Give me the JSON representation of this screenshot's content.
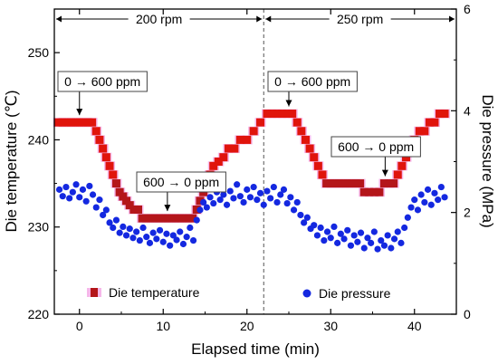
{
  "chart_data": {
    "type": "scatter",
    "xlabel": "Elapsed time (min)",
    "ylabel_left": "Die temperature (℃)",
    "ylabel_right": "Die pressure (MPa)",
    "xlim": [
      -3,
      45
    ],
    "ylim_left": [
      220,
      255
    ],
    "ylim_right": [
      0,
      6
    ],
    "x_ticks": [
      0,
      10,
      20,
      30,
      40
    ],
    "y_left_ticks": [
      220,
      230,
      240,
      250
    ],
    "y_right_ticks": [
      0,
      2,
      4,
      6
    ],
    "divider_x": 22,
    "regions": [
      {
        "label": "200 rpm",
        "x_start": -3,
        "x_end": 22
      },
      {
        "label": "250 rpm",
        "x_start": 22,
        "x_end": 45
      }
    ],
    "annotations": [
      {
        "text": "0 → 600 ppm",
        "arrow_x": 0,
        "arrow_y_temp": 242
      },
      {
        "text": "600 → 0 ppm",
        "arrow_x": 10.5,
        "arrow_y_temp": 231
      },
      {
        "text": "0 → 600 ppm",
        "arrow_x": 25,
        "arrow_y_temp": 243
      },
      {
        "text": "600 → 0 ppm",
        "arrow_x": 36.5,
        "arrow_y_temp": 235
      }
    ],
    "legend_placement": "bottom",
    "series": [
      {
        "name": "Die temperature",
        "axis": "left",
        "color": "#e0140c",
        "marker": "square",
        "points": [
          [
            -2.5,
            242
          ],
          [
            -2,
            242
          ],
          [
            -1.5,
            242
          ],
          [
            -1,
            242
          ],
          [
            -0.5,
            242
          ],
          [
            0,
            242
          ],
          [
            0.5,
            242
          ],
          [
            1,
            242
          ],
          [
            1.5,
            242
          ],
          [
            2,
            241
          ],
          [
            2.4,
            240
          ],
          [
            2.8,
            239
          ],
          [
            3.2,
            238
          ],
          [
            3.6,
            237
          ],
          [
            4,
            236
          ],
          [
            4.4,
            235
          ],
          [
            4.8,
            234
          ],
          [
            5.2,
            233.5
          ],
          [
            5.6,
            233
          ],
          [
            6,
            232.5
          ],
          [
            6.5,
            232
          ],
          [
            7,
            232
          ],
          [
            7.5,
            231
          ],
          [
            8,
            231
          ],
          [
            8.5,
            231
          ],
          [
            9,
            231
          ],
          [
            9.5,
            231
          ],
          [
            10,
            231
          ],
          [
            10.5,
            231
          ],
          [
            11,
            231
          ],
          [
            11.5,
            231
          ],
          [
            12,
            231
          ],
          [
            12.5,
            231
          ],
          [
            13,
            231
          ],
          [
            13.5,
            231
          ],
          [
            14,
            232
          ],
          [
            14.4,
            233
          ],
          [
            14.8,
            234
          ],
          [
            15.2,
            235
          ],
          [
            15.6,
            236
          ],
          [
            16,
            237
          ],
          [
            16.6,
            237.5
          ],
          [
            17.2,
            238
          ],
          [
            17.8,
            239
          ],
          [
            18.5,
            239
          ],
          [
            19.2,
            240
          ],
          [
            20,
            240
          ],
          [
            20.8,
            241
          ],
          [
            21.6,
            242
          ],
          [
            22.4,
            243
          ],
          [
            23,
            243
          ],
          [
            23.6,
            243
          ],
          [
            24.2,
            243
          ],
          [
            24.8,
            243
          ],
          [
            25.4,
            243
          ],
          [
            26,
            242
          ],
          [
            26.5,
            241
          ],
          [
            27,
            240
          ],
          [
            27.5,
            239
          ],
          [
            28,
            238
          ],
          [
            28.5,
            237
          ],
          [
            29,
            236
          ],
          [
            29.5,
            235
          ],
          [
            30,
            235
          ],
          [
            30.5,
            235
          ],
          [
            31,
            235
          ],
          [
            31.5,
            235
          ],
          [
            32,
            235
          ],
          [
            32.5,
            235
          ],
          [
            33,
            235
          ],
          [
            33.5,
            235
          ],
          [
            34,
            234
          ],
          [
            34.6,
            234
          ],
          [
            35.2,
            234
          ],
          [
            35.8,
            234
          ],
          [
            36.4,
            235
          ],
          [
            37,
            235
          ],
          [
            37.5,
            235
          ],
          [
            38,
            236
          ],
          [
            38.5,
            237
          ],
          [
            39,
            238
          ],
          [
            39.5,
            239
          ],
          [
            40,
            240
          ],
          [
            40.6,
            241
          ],
          [
            41.2,
            241
          ],
          [
            41.8,
            242
          ],
          [
            42.4,
            242
          ],
          [
            43,
            243
          ],
          [
            43.6,
            243
          ]
        ]
      },
      {
        "name": "Die pressure",
        "axis": "right",
        "color": "#1428e0",
        "marker": "circle",
        "points": [
          [
            -2.4,
            2.45
          ],
          [
            -2.0,
            2.32
          ],
          [
            -1.6,
            2.5
          ],
          [
            -1.2,
            2.28
          ],
          [
            -0.8,
            2.4
          ],
          [
            -0.4,
            2.55
          ],
          [
            0.0,
            2.3
          ],
          [
            0.4,
            2.45
          ],
          [
            0.8,
            2.22
          ],
          [
            1.2,
            2.52
          ],
          [
            1.6,
            2.35
          ],
          [
            2.0,
            2.1
          ],
          [
            2.4,
            2.25
          ],
          [
            2.8,
            1.95
          ],
          [
            3.2,
            2.05
          ],
          [
            3.6,
            1.8
          ],
          [
            4.0,
            1.7
          ],
          [
            4.4,
            1.85
          ],
          [
            4.8,
            1.6
          ],
          [
            5.2,
            1.72
          ],
          [
            5.6,
            1.55
          ],
          [
            6.0,
            1.68
          ],
          [
            6.4,
            1.5
          ],
          [
            6.8,
            1.62
          ],
          [
            7.2,
            1.45
          ],
          [
            7.6,
            1.7
          ],
          [
            8.0,
            1.52
          ],
          [
            8.4,
            1.4
          ],
          [
            8.8,
            1.6
          ],
          [
            9.2,
            1.48
          ],
          [
            9.6,
            1.65
          ],
          [
            10.0,
            1.42
          ],
          [
            10.4,
            1.58
          ],
          [
            10.8,
            1.35
          ],
          [
            11.2,
            1.55
          ],
          [
            11.6,
            1.46
          ],
          [
            12.0,
            1.62
          ],
          [
            12.4,
            1.38
          ],
          [
            12.8,
            1.52
          ],
          [
            13.2,
            1.7
          ],
          [
            13.6,
            1.45
          ],
          [
            14.0,
            1.85
          ],
          [
            14.4,
            2.05
          ],
          [
            14.8,
            2.2
          ],
          [
            15.2,
            2.1
          ],
          [
            15.6,
            2.3
          ],
          [
            16.0,
            2.18
          ],
          [
            16.4,
            2.4
          ],
          [
            16.8,
            2.25
          ],
          [
            17.2,
            2.35
          ],
          [
            17.6,
            2.15
          ],
          [
            18.0,
            2.42
          ],
          [
            18.4,
            2.28
          ],
          [
            18.8,
            2.55
          ],
          [
            19.2,
            2.32
          ],
          [
            19.6,
            2.2
          ],
          [
            20.0,
            2.45
          ],
          [
            20.4,
            2.3
          ],
          [
            20.8,
            2.5
          ],
          [
            21.2,
            2.25
          ],
          [
            21.6,
            2.38
          ],
          [
            22.0,
            2.15
          ],
          [
            22.4,
            2.42
          ],
          [
            22.8,
            2.28
          ],
          [
            23.2,
            2.5
          ],
          [
            23.6,
            2.2
          ],
          [
            24.0,
            2.35
          ],
          [
            24.4,
            2.45
          ],
          [
            24.8,
            2.18
          ],
          [
            25.2,
            2.3
          ],
          [
            25.6,
            2.05
          ],
          [
            26.0,
            2.2
          ],
          [
            26.4,
            1.95
          ],
          [
            26.8,
            1.8
          ],
          [
            27.2,
            1.9
          ],
          [
            27.6,
            1.68
          ],
          [
            28.0,
            1.75
          ],
          [
            28.4,
            1.55
          ],
          [
            28.8,
            1.7
          ],
          [
            29.2,
            1.45
          ],
          [
            29.6,
            1.62
          ],
          [
            30.0,
            1.5
          ],
          [
            30.4,
            1.72
          ],
          [
            30.8,
            1.4
          ],
          [
            31.2,
            1.58
          ],
          [
            31.6,
            1.48
          ],
          [
            32.0,
            1.65
          ],
          [
            32.4,
            1.35
          ],
          [
            32.8,
            1.55
          ],
          [
            33.2,
            1.42
          ],
          [
            33.6,
            1.6
          ],
          [
            34.0,
            1.3
          ],
          [
            34.4,
            1.5
          ],
          [
            34.8,
            1.4
          ],
          [
            35.2,
            1.62
          ],
          [
            35.6,
            1.28
          ],
          [
            36.0,
            1.45
          ],
          [
            36.4,
            1.35
          ],
          [
            36.8,
            1.55
          ],
          [
            37.2,
            1.3
          ],
          [
            37.6,
            1.48
          ],
          [
            38.0,
            1.62
          ],
          [
            38.4,
            1.4
          ],
          [
            38.8,
            1.7
          ],
          [
            39.2,
            1.9
          ],
          [
            39.6,
            2.1
          ],
          [
            40.0,
            2.25
          ],
          [
            40.4,
            2.05
          ],
          [
            40.8,
            2.35
          ],
          [
            41.2,
            2.2
          ],
          [
            41.6,
            2.45
          ],
          [
            42.0,
            2.15
          ],
          [
            42.4,
            2.38
          ],
          [
            42.8,
            2.25
          ],
          [
            43.2,
            2.5
          ],
          [
            43.6,
            2.3
          ]
        ]
      }
    ]
  }
}
